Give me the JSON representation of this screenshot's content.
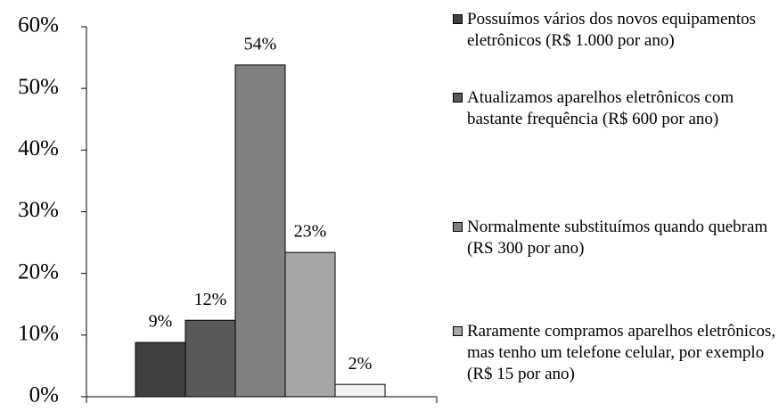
{
  "chart_data": {
    "type": "bar",
    "series": [
      {
        "name": "Possuímos vários dos novos equipamentos eletrônicos (R$ 1.000 por ano)",
        "color": "#404040",
        "values": [
          8.8
        ],
        "value_labels": [
          "9%"
        ]
      },
      {
        "name": "Atualizamos aparelhos eletrônicos com bastante frequência (R$ 600 por ano)",
        "color": "#595959",
        "values": [
          12.4
        ],
        "value_labels": [
          "12%"
        ]
      },
      {
        "name": "Normalmente substituímos quando quebram (RS 300 por ano)",
        "color": "#808080",
        "values": [
          53.8
        ],
        "value_labels": [
          "54%"
        ]
      },
      {
        "name": "Raramente compramos aparelhos eletrônicos, mas tenho um telefone celular, por exemplo (R$ 15 por ano)",
        "color": "#a6a6a6",
        "values": [
          23.4
        ],
        "value_labels": [
          "23%"
        ]
      },
      {
        "name": null,
        "color": "#f2f2f2",
        "values": [
          2.0
        ],
        "value_labels": [
          "2%"
        ]
      }
    ],
    "ylim": [
      0,
      60
    ],
    "yticks": [
      {
        "value": 0,
        "label": "0%"
      },
      {
        "value": 10,
        "label": "10%"
      },
      {
        "value": 20,
        "label": "20%"
      },
      {
        "value": 30,
        "label": "30%"
      },
      {
        "value": 40,
        "label": "40%"
      },
      {
        "value": 50,
        "label": "50%"
      },
      {
        "value": 60,
        "label": "60%"
      }
    ],
    "legend": "right"
  }
}
